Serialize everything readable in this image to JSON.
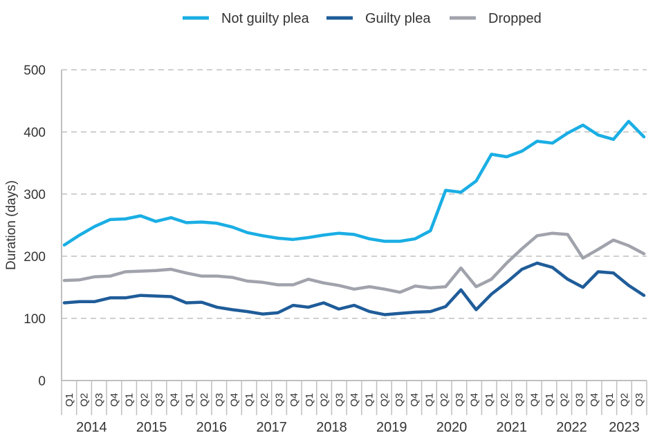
{
  "chart_data": {
    "type": "line",
    "title": "",
    "xlabel": "",
    "ylabel": "Duration (days)",
    "ylim": [
      0,
      500
    ],
    "yticks": [
      "0",
      "100",
      "200",
      "300",
      "400",
      "500"
    ],
    "grid": true,
    "legend_position": "top",
    "quarter_labels": [
      "Q1",
      "Q2",
      "Q3",
      "Q4",
      "Q1",
      "Q2",
      "Q3",
      "Q4",
      "Q1",
      "Q2",
      "Q3",
      "Q4",
      "Q1",
      "Q2",
      "Q3",
      "Q4",
      "Q1",
      "Q2",
      "Q3",
      "Q4",
      "Q1",
      "Q2",
      "Q3",
      "Q4",
      "Q1",
      "Q2",
      "Q3",
      "Q4",
      "Q1",
      "Q2",
      "Q3",
      "Q4",
      "Q1",
      "Q2",
      "Q3",
      "Q4",
      "Q1",
      "Q2",
      "Q3"
    ],
    "years": [
      "2014",
      "2015",
      "2016",
      "2017",
      "2018",
      "2019",
      "2020",
      "2021",
      "2022",
      "2023"
    ],
    "series": [
      {
        "name": "Not guilty plea",
        "color": "#1AAEE4",
        "values": [
          218,
          234,
          248,
          259,
          260,
          265,
          256,
          262,
          254,
          255,
          253,
          247,
          238,
          233,
          229,
          227,
          230,
          234,
          237,
          235,
          228,
          224,
          224,
          228,
          241,
          306,
          303,
          321,
          364,
          360,
          369,
          385,
          382,
          398,
          411,
          395,
          388,
          417,
          392
        ]
      },
      {
        "name": "Guilty plea",
        "color": "#1F5C99",
        "values": [
          125,
          127,
          127,
          133,
          133,
          137,
          136,
          135,
          125,
          126,
          118,
          114,
          111,
          107,
          109,
          121,
          118,
          125,
          115,
          121,
          111,
          106,
          108,
          110,
          111,
          119,
          146,
          114,
          139,
          158,
          179,
          189,
          182,
          163,
          150,
          175,
          173,
          153,
          137
        ]
      },
      {
        "name": "Dropped",
        "color": "#A0A3AC",
        "values": [
          161,
          162,
          167,
          168,
          175,
          176,
          177,
          179,
          173,
          168,
          168,
          166,
          160,
          158,
          154,
          154,
          163,
          157,
          153,
          147,
          151,
          147,
          142,
          152,
          149,
          151,
          181,
          151,
          163,
          189,
          212,
          233,
          237,
          235,
          197,
          211,
          226,
          217,
          204
        ]
      }
    ]
  }
}
